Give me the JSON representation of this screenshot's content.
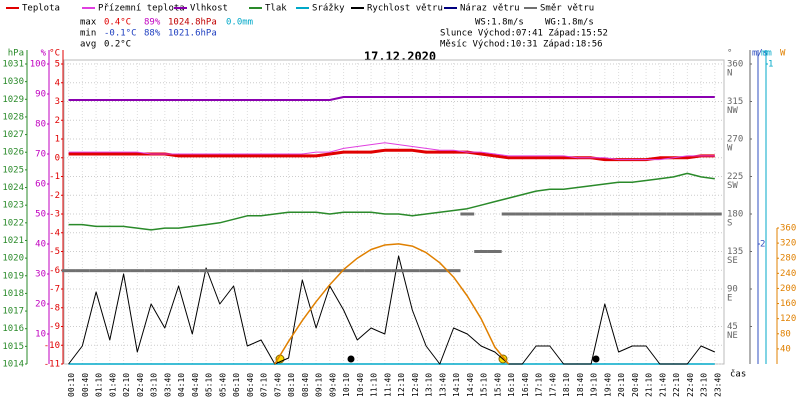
{
  "header": {
    "stats": [
      {
        "label": "max",
        "temp": "0.4°C",
        "hum": "89%",
        "press": "1024.8hPa",
        "rain": "0.0mm"
      },
      {
        "label": "min",
        "temp": "-0.1°C",
        "hum": "88%",
        "press": "1021.6hPa"
      },
      {
        "label": "avg",
        "temp": "0.2°C"
      }
    ],
    "ws": "WS:1.8m/s",
    "wg": "WG:1.8m/s",
    "sun": "Slunce Východ:07:41  Západ:15:52",
    "moon": "Měsíc  Východ:10:31  Západ:18:56"
  },
  "chart_data": {
    "type": "line",
    "title": "17.12.2020",
    "x_label": "čas",
    "grid": true,
    "categories": [
      "00:10",
      "00:40",
      "01:10",
      "01:40",
      "02:10",
      "02:40",
      "03:10",
      "03:40",
      "04:10",
      "04:40",
      "05:10",
      "05:40",
      "06:10",
      "06:40",
      "07:10",
      "07:40",
      "08:10",
      "08:40",
      "09:10",
      "09:40",
      "10:10",
      "10:40",
      "11:10",
      "11:40",
      "12:10",
      "12:40",
      "13:10",
      "13:40",
      "14:10",
      "14:40",
      "15:10",
      "15:40",
      "16:10",
      "16:40",
      "17:10",
      "17:40",
      "18:10",
      "18:40",
      "19:10",
      "19:40",
      "20:10",
      "20:40",
      "21:10",
      "21:40",
      "22:10",
      "22:40",
      "23:10",
      "23:40"
    ],
    "axes": [
      {
        "unit": "hPa",
        "color": "#2a8a2a",
        "side": "left",
        "lim": [
          1014,
          1031
        ],
        "ticks": [
          1014,
          1015,
          1016,
          1017,
          1018,
          1019,
          1020,
          1021,
          1022,
          1023,
          1024,
          1025,
          1026,
          1027,
          1028,
          1029,
          1030,
          1031
        ]
      },
      {
        "unit": "%",
        "color": "#c000c0",
        "side": "left",
        "lim": [
          0,
          100
        ],
        "ticks": [
          10,
          20,
          30,
          40,
          50,
          60,
          70,
          80,
          90,
          100
        ]
      },
      {
        "unit": "°C",
        "color": "#e00000",
        "side": "left",
        "lim": [
          -11,
          5
        ],
        "ticks": [
          -11,
          -10,
          -9,
          -8,
          -7,
          -6,
          -5,
          -4,
          -3,
          -2,
          -1,
          0,
          1,
          2,
          3,
          4,
          5
        ]
      },
      {
        "unit": "°",
        "color": "#666666",
        "side": "right",
        "lim": [
          0,
          360
        ],
        "ticks": [
          45,
          90,
          135,
          180,
          225,
          270,
          315,
          360
        ],
        "compass": [
          "NE",
          "E",
          "SE",
          "S",
          "SW",
          "W",
          "NW",
          "N"
        ]
      },
      {
        "unit": "m/s",
        "color": "#3050c0",
        "side": "right",
        "lim": [
          0,
          5
        ],
        "ticks": [
          2
        ]
      },
      {
        "unit": "mm",
        "color": "#00a8c8",
        "side": "right",
        "lim": [
          0,
          1
        ],
        "ticks": [
          1
        ]
      },
      {
        "unit": "W",
        "color": "#e08000",
        "side": "right",
        "lim": [
          0,
          360
        ],
        "ticks": [
          40,
          80,
          120,
          160,
          200,
          240,
          280,
          320,
          360
        ]
      }
    ],
    "series": [
      {
        "name": "Teplota",
        "color": "#e00000",
        "axis": 2,
        "width": 3,
        "values": [
          0.2,
          0.2,
          0.2,
          0.2,
          0.2,
          0.2,
          0.2,
          0.2,
          0.1,
          0.1,
          0.1,
          0.1,
          0.1,
          0.1,
          0.1,
          0.1,
          0.1,
          0.1,
          0.1,
          0.2,
          0.3,
          0.3,
          0.3,
          0.4,
          0.4,
          0.4,
          0.3,
          0.3,
          0.3,
          0.3,
          0.2,
          0.1,
          0.0,
          0.0,
          0.0,
          0.0,
          0.0,
          0.0,
          0.0,
          -0.1,
          -0.1,
          -0.1,
          -0.1,
          0.0,
          0.0,
          0.0,
          0.1,
          0.1
        ]
      },
      {
        "name": "Přízemní teplota",
        "color": "#e040e0",
        "axis": 2,
        "width": 1,
        "values": [
          0.3,
          0.3,
          0.3,
          0.3,
          0.3,
          0.3,
          0.2,
          0.2,
          0.2,
          0.2,
          0.2,
          0.2,
          0.2,
          0.2,
          0.2,
          0.2,
          0.2,
          0.2,
          0.3,
          0.3,
          0.5,
          0.6,
          0.7,
          0.8,
          0.7,
          0.6,
          0.5,
          0.4,
          0.4,
          0.3,
          0.3,
          0.2,
          0.1,
          0.1,
          0.1,
          0.1,
          0.1,
          0.0,
          0.0,
          0.0,
          -0.1,
          -0.1,
          -0.1,
          -0.1,
          0.0,
          0.1,
          0.1,
          0.1
        ]
      },
      {
        "name": "Vlhkost",
        "color": "#8a00b0",
        "axis": 1,
        "width": 2,
        "values": [
          88,
          88,
          88,
          88,
          88,
          88,
          88,
          88,
          88,
          88,
          88,
          88,
          88,
          88,
          88,
          88,
          88,
          88,
          88,
          88,
          89,
          89,
          89,
          89,
          89,
          89,
          89,
          89,
          89,
          89,
          89,
          89,
          89,
          89,
          89,
          89,
          89,
          89,
          89,
          89,
          89,
          89,
          89,
          89,
          89,
          89,
          89,
          89
        ]
      },
      {
        "name": "Tlak",
        "color": "#2a8a2a",
        "axis": 0,
        "width": 1.5,
        "values": [
          1021.9,
          1021.9,
          1021.8,
          1021.8,
          1021.8,
          1021.7,
          1021.6,
          1021.7,
          1021.7,
          1021.8,
          1021.9,
          1022.0,
          1022.2,
          1022.4,
          1022.4,
          1022.5,
          1022.6,
          1022.6,
          1022.6,
          1022.5,
          1022.6,
          1022.6,
          1022.6,
          1022.5,
          1022.5,
          1022.4,
          1022.5,
          1022.6,
          1022.7,
          1022.8,
          1023.0,
          1023.2,
          1023.4,
          1023.6,
          1023.8,
          1023.9,
          1023.9,
          1024.0,
          1024.1,
          1024.2,
          1024.3,
          1024.3,
          1024.4,
          1024.5,
          1024.6,
          1024.8,
          1024.6,
          1024.5
        ]
      },
      {
        "name": "Srážky",
        "color": "#00a8c8",
        "axis": 5,
        "width": 1.5,
        "values": [
          0,
          0,
          0,
          0,
          0,
          0,
          0,
          0,
          0,
          0,
          0,
          0,
          0,
          0,
          0,
          0,
          0,
          0,
          0,
          0,
          0,
          0,
          0,
          0,
          0,
          0,
          0,
          0,
          0,
          0,
          0,
          0,
          0,
          0,
          0,
          0,
          0,
          0,
          0,
          0,
          0,
          0,
          0,
          0,
          0,
          0,
          0,
          0
        ]
      },
      {
        "name": "Rychlost větru",
        "color": "#000000",
        "axis": 4,
        "width": 1,
        "values": [
          0,
          0.3,
          1.2,
          0.4,
          1.5,
          0.2,
          1.0,
          0.6,
          1.3,
          0.5,
          1.6,
          1.0,
          1.3,
          0.3,
          0.4,
          0,
          0.1,
          1.4,
          0.6,
          1.3,
          0.9,
          0.4,
          0.6,
          0.5,
          1.8,
          0.9,
          0.3,
          0,
          0.6,
          0.5,
          0.3,
          0.2,
          0,
          0,
          0.3,
          0.3,
          0,
          0,
          0,
          1.0,
          0.2,
          0.3,
          0.3,
          0,
          0,
          0,
          0.3,
          0.2
        ]
      },
      {
        "name": "Náraz větru",
        "color": "#000080",
        "axis": 4,
        "width": 1,
        "values": [
          null,
          null,
          null,
          null,
          null,
          null,
          null,
          null,
          null,
          null,
          null,
          null,
          null,
          null,
          null,
          null,
          null,
          null,
          null,
          null,
          null,
          null,
          null,
          null,
          null,
          null,
          null,
          null,
          null,
          null,
          null,
          null,
          null,
          null,
          null,
          null,
          null,
          null,
          null,
          null,
          null,
          null,
          null,
          null,
          null,
          null,
          null,
          null
        ]
      },
      {
        "name": "Směr větru",
        "color": "#707070",
        "axis": 3,
        "style": "dashes",
        "values": [
          112,
          112,
          112,
          112,
          112,
          112,
          112,
          112,
          112,
          112,
          112,
          112,
          112,
          112,
          112,
          112,
          112,
          112,
          112,
          112,
          112,
          112,
          112,
          112,
          112,
          112,
          112,
          112,
          112,
          180,
          135,
          135,
          180,
          180,
          180,
          180,
          180,
          180,
          180,
          180,
          180,
          180,
          180,
          180,
          180,
          180,
          180,
          180
        ]
      },
      {
        "color": "#e08000",
        "axis": 6,
        "width": 1.5,
        "values": [
          null,
          null,
          null,
          null,
          null,
          null,
          null,
          null,
          null,
          null,
          null,
          null,
          null,
          null,
          null,
          0,
          60,
          115,
          165,
          210,
          250,
          280,
          303,
          315,
          318,
          312,
          295,
          268,
          230,
          180,
          120,
          45,
          0,
          null,
          null,
          null,
          null,
          null,
          null,
          null,
          null,
          null,
          null,
          null,
          null,
          null,
          null,
          null
        ]
      }
    ]
  }
}
